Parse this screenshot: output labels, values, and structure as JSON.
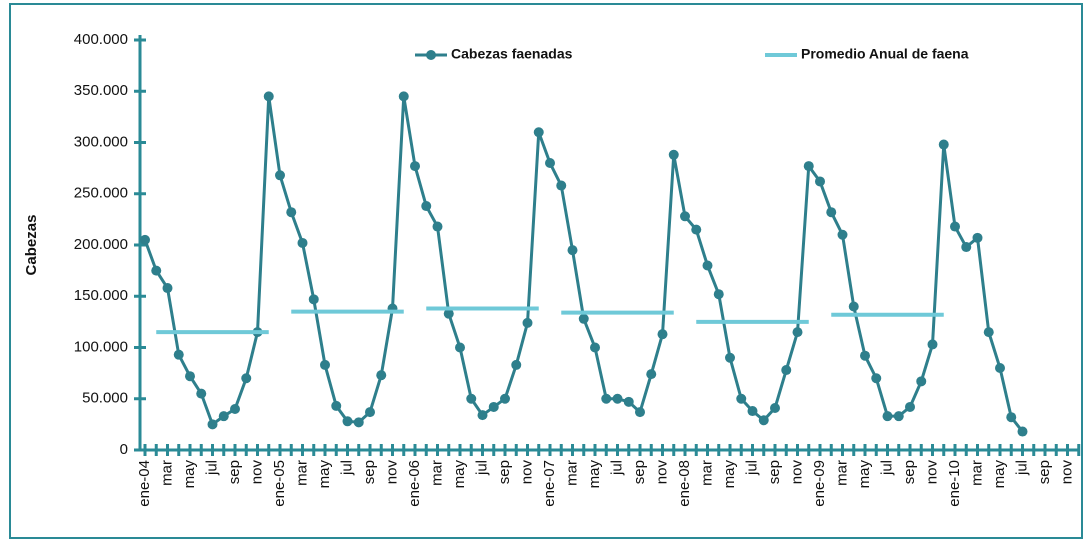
{
  "chart_data": {
    "type": "line",
    "y_label": "Cabezas",
    "categories": [
      "ene-04",
      null,
      "mar",
      null,
      "may",
      null,
      "jul",
      null,
      "sep",
      null,
      "nov",
      null,
      "ene-05",
      null,
      "mar",
      null,
      "may",
      null,
      "jul",
      null,
      "sep",
      null,
      "nov",
      null,
      "ene-06",
      null,
      "mar",
      null,
      "may",
      null,
      "jul",
      null,
      "sep",
      null,
      "nov",
      null,
      "ene-07",
      null,
      "mar",
      null,
      "may",
      null,
      "jul",
      null,
      "sep",
      null,
      "nov",
      null,
      "ene-08",
      null,
      "mar",
      null,
      "may",
      null,
      "jul",
      null,
      "sep",
      null,
      "nov",
      null,
      "ene-09",
      null,
      "mar",
      null,
      "may",
      null,
      "jul",
      null,
      "sep",
      null,
      "nov",
      null,
      "ene-10",
      null,
      "mar",
      null,
      "may",
      null,
      "jul",
      null,
      "sep",
      null,
      "nov",
      null
    ],
    "series": [
      {
        "name": "Cabezas faenadas",
        "color": "#2e7f8c",
        "markers": true,
        "values": [
          205000,
          175000,
          158000,
          93000,
          72000,
          55000,
          25000,
          33000,
          40000,
          70000,
          115000,
          345000,
          268000,
          232000,
          202000,
          147000,
          83000,
          43000,
          28000,
          27000,
          37000,
          73000,
          138000,
          345000,
          277000,
          238000,
          218000,
          133000,
          100000,
          50000,
          34000,
          42000,
          50000,
          83000,
          124000,
          310000,
          280000,
          258000,
          195000,
          128000,
          100000,
          50000,
          50000,
          47000,
          37000,
          74000,
          113000,
          288000,
          228000,
          215000,
          180000,
          152000,
          90000,
          50000,
          38000,
          29000,
          41000,
          78000,
          115000,
          277000,
          262000,
          232000,
          210000,
          140000,
          92000,
          70000,
          33000,
          33000,
          42000,
          67000,
          103000,
          298000,
          218000,
          198000,
          207000,
          115000,
          80000,
          32000,
          18000,
          null,
          null,
          null,
          null,
          null
        ]
      },
      {
        "name": "Promedio Anual de faena",
        "color": "#6fc9d8",
        "markers": false,
        "values": [
          null,
          115000,
          115000,
          115000,
          115000,
          115000,
          115000,
          115000,
          115000,
          115000,
          115000,
          115000,
          null,
          135000,
          135000,
          135000,
          135000,
          135000,
          135000,
          135000,
          135000,
          135000,
          135000,
          135000,
          null,
          138000,
          138000,
          138000,
          138000,
          138000,
          138000,
          138000,
          138000,
          138000,
          138000,
          138000,
          null,
          134000,
          134000,
          134000,
          134000,
          134000,
          134000,
          134000,
          134000,
          134000,
          134000,
          134000,
          null,
          125000,
          125000,
          125000,
          125000,
          125000,
          125000,
          125000,
          125000,
          125000,
          125000,
          125000,
          null,
          132000,
          132000,
          132000,
          132000,
          132000,
          132000,
          132000,
          132000,
          132000,
          132000,
          132000,
          null,
          null,
          null,
          null,
          null,
          null,
          null,
          null,
          null,
          null,
          null,
          null
        ]
      }
    ],
    "ylim": [
      0,
      400000
    ],
    "yticks": [
      0,
      {
        "value": 50000,
        "label": "50.000"
      },
      {
        "value": 100000,
        "label": "100.000"
      },
      {
        "value": 150000,
        "label": "150.000"
      },
      {
        "value": 200000,
        "label": "200.000"
      },
      {
        "value": 250000,
        "label": "250.000"
      },
      {
        "value": 300000,
        "label": "300.000"
      },
      {
        "value": 350000,
        "label": "350.000"
      },
      {
        "value": 400000,
        "label": "400.000"
      }
    ],
    "axis_color": "#2a8a96",
    "legend": "top"
  }
}
